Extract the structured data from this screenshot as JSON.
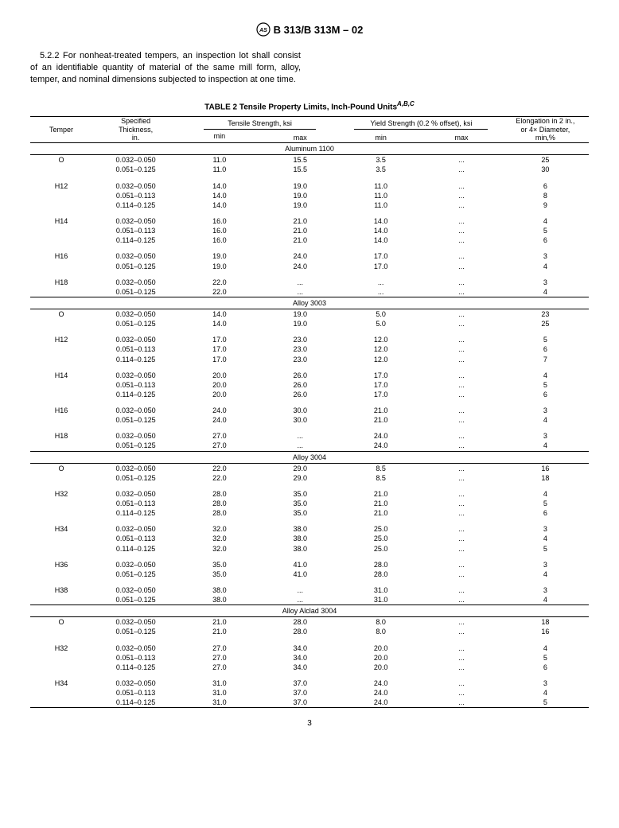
{
  "doc_header": "B 313/B 313M – 02",
  "paragraph_num": "5.2.2",
  "paragraph": "For nonheat-treated tempers, an inspection lot shall consist of an identifiable quantity of material of the same mill form, alloy, temper, and nominal dimensions subjected to inspection at one time.",
  "table_title": "TABLE 2  Tensile Property Limits, Inch-Pound Units",
  "table_super": "A,B,C",
  "headers": {
    "temper": "Temper",
    "thickness": "Specified\nThickness,\nin.",
    "tensile": "Tensile Strength, ksi",
    "yield": "Yield Strength (0.2 % offset), ksi",
    "elong": "Elongation in 2 in.,\nor 4× Diameter,\nmin,%",
    "min": "min",
    "max": "max"
  },
  "sections": [
    {
      "title": "Aluminum 1100",
      "groups": [
        {
          "temper": "O",
          "rows": [
            [
              "0.032–0.050",
              "11.0",
              "15.5",
              "3.5",
              "...",
              "25"
            ],
            [
              "0.051–0.125",
              "11.0",
              "15.5",
              "3.5",
              "...",
              "30"
            ]
          ]
        },
        {
          "temper": "H12",
          "rows": [
            [
              "0.032–0.050",
              "14.0",
              "19.0",
              "11.0",
              "...",
              "6"
            ],
            [
              "0.051–0.113",
              "14.0",
              "19.0",
              "11.0",
              "...",
              "8"
            ],
            [
              "0.114–0.125",
              "14.0",
              "19.0",
              "11.0",
              "...",
              "9"
            ]
          ]
        },
        {
          "temper": "H14",
          "rows": [
            [
              "0.032–0.050",
              "16.0",
              "21.0",
              "14.0",
              "...",
              "4"
            ],
            [
              "0.051–0.113",
              "16.0",
              "21.0",
              "14.0",
              "...",
              "5"
            ],
            [
              "0.114–0.125",
              "16.0",
              "21.0",
              "14.0",
              "...",
              "6"
            ]
          ]
        },
        {
          "temper": "H16",
          "rows": [
            [
              "0.032–0.050",
              "19.0",
              "24.0",
              "17.0",
              "...",
              "3"
            ],
            [
              "0.051–0.125",
              "19.0",
              "24.0",
              "17.0",
              "...",
              "4"
            ]
          ]
        },
        {
          "temper": "H18",
          "rows": [
            [
              "0.032–0.050",
              "22.0",
              "...",
              "...",
              "...",
              "3"
            ],
            [
              "0.051–0.125",
              "22.0",
              "...",
              "...",
              "...",
              "4"
            ]
          ]
        }
      ]
    },
    {
      "title": "Alloy 3003",
      "groups": [
        {
          "temper": "O",
          "rows": [
            [
              "0.032–0.050",
              "14.0",
              "19.0",
              "5.0",
              "...",
              "23"
            ],
            [
              "0.051–0.125",
              "14.0",
              "19.0",
              "5.0",
              "...",
              "25"
            ]
          ]
        },
        {
          "temper": "H12",
          "rows": [
            [
              "0.032–0.050",
              "17.0",
              "23.0",
              "12.0",
              "...",
              "5"
            ],
            [
              "0.051–0.113",
              "17.0",
              "23.0",
              "12.0",
              "...",
              "6"
            ],
            [
              "0.114–0.125",
              "17.0",
              "23.0",
              "12.0",
              "...",
              "7"
            ]
          ]
        },
        {
          "temper": "H14",
          "rows": [
            [
              "0.032–0.050",
              "20.0",
              "26.0",
              "17.0",
              "...",
              "4"
            ],
            [
              "0.051–0.113",
              "20.0",
              "26.0",
              "17.0",
              "...",
              "5"
            ],
            [
              "0.114–0.125",
              "20.0",
              "26.0",
              "17.0",
              "...",
              "6"
            ]
          ]
        },
        {
          "temper": "H16",
          "rows": [
            [
              "0.032–0.050",
              "24.0",
              "30.0",
              "21.0",
              "...",
              "3"
            ],
            [
              "0.051–0.125",
              "24.0",
              "30.0",
              "21.0",
              "...",
              "4"
            ]
          ]
        },
        {
          "temper": "H18",
          "rows": [
            [
              "0.032–0.050",
              "27.0",
              "...",
              "24.0",
              "...",
              "3"
            ],
            [
              "0.051–0.125",
              "27.0",
              "...",
              "24.0",
              "...",
              "4"
            ]
          ]
        }
      ]
    },
    {
      "title": "Alloy 3004",
      "groups": [
        {
          "temper": "O",
          "rows": [
            [
              "0.032–0.050",
              "22.0",
              "29.0",
              "8.5",
              "...",
              "16"
            ],
            [
              "0.051–0.125",
              "22.0",
              "29.0",
              "8.5",
              "...",
              "18"
            ]
          ]
        },
        {
          "temper": "H32",
          "rows": [
            [
              "0.032–0.050",
              "28.0",
              "35.0",
              "21.0",
              "...",
              "4"
            ],
            [
              "0.051–0.113",
              "28.0",
              "35.0",
              "21.0",
              "...",
              "5"
            ],
            [
              "0.114–0.125",
              "28.0",
              "35.0",
              "21.0",
              "...",
              "6"
            ]
          ]
        },
        {
          "temper": "H34",
          "rows": [
            [
              "0.032–0.050",
              "32.0",
              "38.0",
              "25.0",
              "...",
              "3"
            ],
            [
              "0.051–0.113",
              "32.0",
              "38.0",
              "25.0",
              "...",
              "4"
            ],
            [
              "0.114–0.125",
              "32.0",
              "38.0",
              "25.0",
              "...",
              "5"
            ]
          ]
        },
        {
          "temper": "H36",
          "rows": [
            [
              "0.032–0.050",
              "35.0",
              "41.0",
              "28.0",
              "...",
              "3"
            ],
            [
              "0.051–0.125",
              "35.0",
              "41.0",
              "28.0",
              "...",
              "4"
            ]
          ]
        },
        {
          "temper": "H38",
          "rows": [
            [
              "0.032–0.050",
              "38.0",
              "...",
              "31.0",
              "...",
              "3"
            ],
            [
              "0.051–0.125",
              "38.0",
              "...",
              "31.0",
              "...",
              "4"
            ]
          ]
        }
      ]
    },
    {
      "title": "Alloy Alclad 3004",
      "groups": [
        {
          "temper": "O",
          "rows": [
            [
              "0.032–0.050",
              "21.0",
              "28.0",
              "8.0",
              "...",
              "18"
            ],
            [
              "0.051–0.125",
              "21.0",
              "28.0",
              "8.0",
              "...",
              "16"
            ]
          ]
        },
        {
          "temper": "H32",
          "rows": [
            [
              "0.032–0.050",
              "27.0",
              "34.0",
              "20.0",
              "...",
              "4"
            ],
            [
              "0.051–0.113",
              "27.0",
              "34.0",
              "20.0",
              "...",
              "5"
            ],
            [
              "0.114–0.125",
              "27.0",
              "34.0",
              "20.0",
              "...",
              "6"
            ]
          ]
        },
        {
          "temper": "H34",
          "rows": [
            [
              "0.032–0.050",
              "31.0",
              "37.0",
              "24.0",
              "...",
              "3"
            ],
            [
              "0.051–0.113",
              "31.0",
              "37.0",
              "24.0",
              "...",
              "4"
            ],
            [
              "0.114–0.125",
              "31.0",
              "37.0",
              "24.0",
              "...",
              "5"
            ]
          ]
        }
      ]
    }
  ],
  "page_number": "3"
}
